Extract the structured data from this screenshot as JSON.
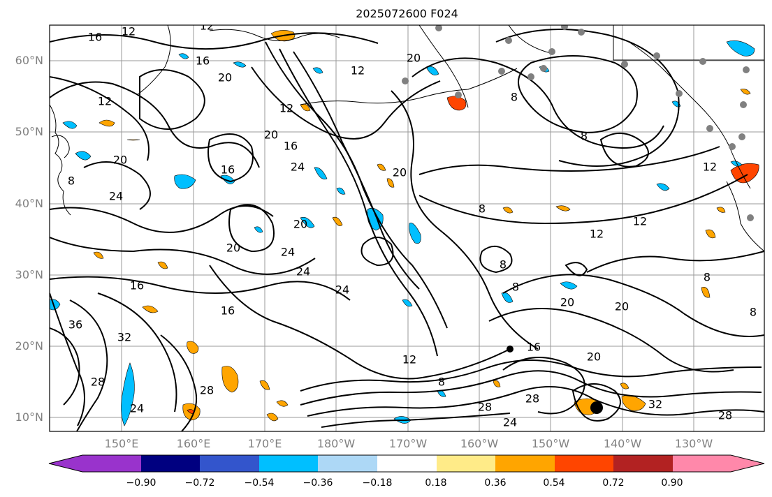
{
  "title": "2025072600 F024",
  "lat_labels": [
    "60°N",
    "50°N",
    "40°N",
    "30°N",
    "20°N",
    "10°N"
  ],
  "lon_labels": [
    "150°E",
    "160°E",
    "170°E",
    "180°W",
    "170°W",
    "160°W",
    "150°W",
    "140°W",
    "130°W"
  ],
  "contour_labels": [
    "16",
    "12",
    "12",
    "16",
    "20",
    "12",
    "12",
    "20",
    "8",
    "12",
    "20",
    "16",
    "24",
    "16",
    "20",
    "8",
    "24",
    "20",
    "12",
    "8",
    "12",
    "20",
    "12",
    "8",
    "24",
    "24",
    "20",
    "8",
    "8",
    "16",
    "16",
    "24",
    "8",
    "20",
    "20",
    "8",
    "36",
    "32",
    "12",
    "16",
    "28",
    "8",
    "28",
    "20",
    "24",
    "28",
    "28",
    "24",
    "32",
    "28"
  ],
  "colorbar": {
    "ticks": [
      "−0.90",
      "−0.72",
      "−0.54",
      "−0.36",
      "−0.18",
      "0.18",
      "0.36",
      "0.54",
      "0.72",
      "0.90"
    ],
    "colors": [
      "#9933cc",
      "#000080",
      "#3355cc",
      "#00bfff",
      "#add8f6",
      "#ffffff",
      "#ffeb88",
      "#ffa500",
      "#ff4500",
      "#b22222",
      "#ff88aa",
      "#ff88aa"
    ]
  }
}
